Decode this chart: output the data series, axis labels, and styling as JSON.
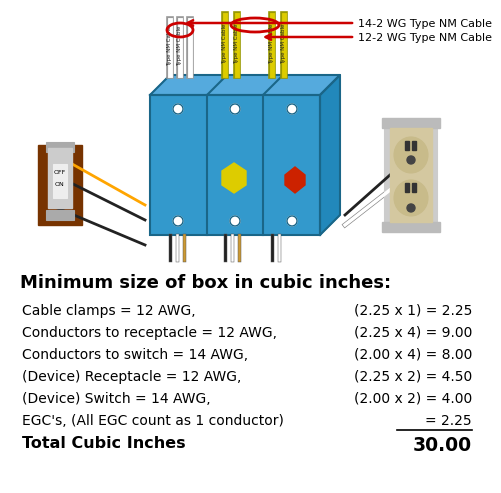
{
  "bg_color": "#ffffff",
  "title": "Minimum size of box in cubic inches:",
  "title_fontsize": 13,
  "rows": [
    {
      "left": "Cable clamps = 12 AWG,",
      "right": "(2.25 x 1) = 2.25",
      "underline": false,
      "bold": false
    },
    {
      "left": "Conductors to receptacle = 12 AWG,",
      "right": "(2.25 x 4) = 9.00",
      "underline": false,
      "bold": false
    },
    {
      "left": "Conductors to switch = 14 AWG,",
      "right": "(2.00 x 4) = 8.00",
      "underline": false,
      "bold": false
    },
    {
      "left": "(Device) Receptacle = 12 AWG,",
      "right": "(2.25 x 2) = 4.50",
      "underline": false,
      "bold": false
    },
    {
      "left": "(Device) Switch = 14 AWG,",
      "right": "(2.00 x 2) = 4.00",
      "underline": false,
      "bold": false
    },
    {
      "left": "EGC's, (All EGC count as 1 conductor)",
      "right": "= 2.25",
      "underline": true,
      "bold": false
    },
    {
      "left": "Total Cubic Inches",
      "right": "30.00",
      "underline": false,
      "bold": true
    }
  ],
  "label_14_2": "14-2 WG Type NM Cable",
  "label_12_2": "12-2 WG Type NM Cable",
  "arrow_color": "#cc0000",
  "text_color": "#000000",
  "font_size": 10,
  "box_blue": "#3399cc",
  "box_blue_dark": "#1a6688",
  "box_blue_top": "#55aadd",
  "box_blue_right": "#2288bb",
  "switch_red": "#cc2200",
  "cable_yellow": "#ddcc00",
  "receptacle_beige": "#d4c8a0",
  "receptacle_dark": "#b8a870"
}
